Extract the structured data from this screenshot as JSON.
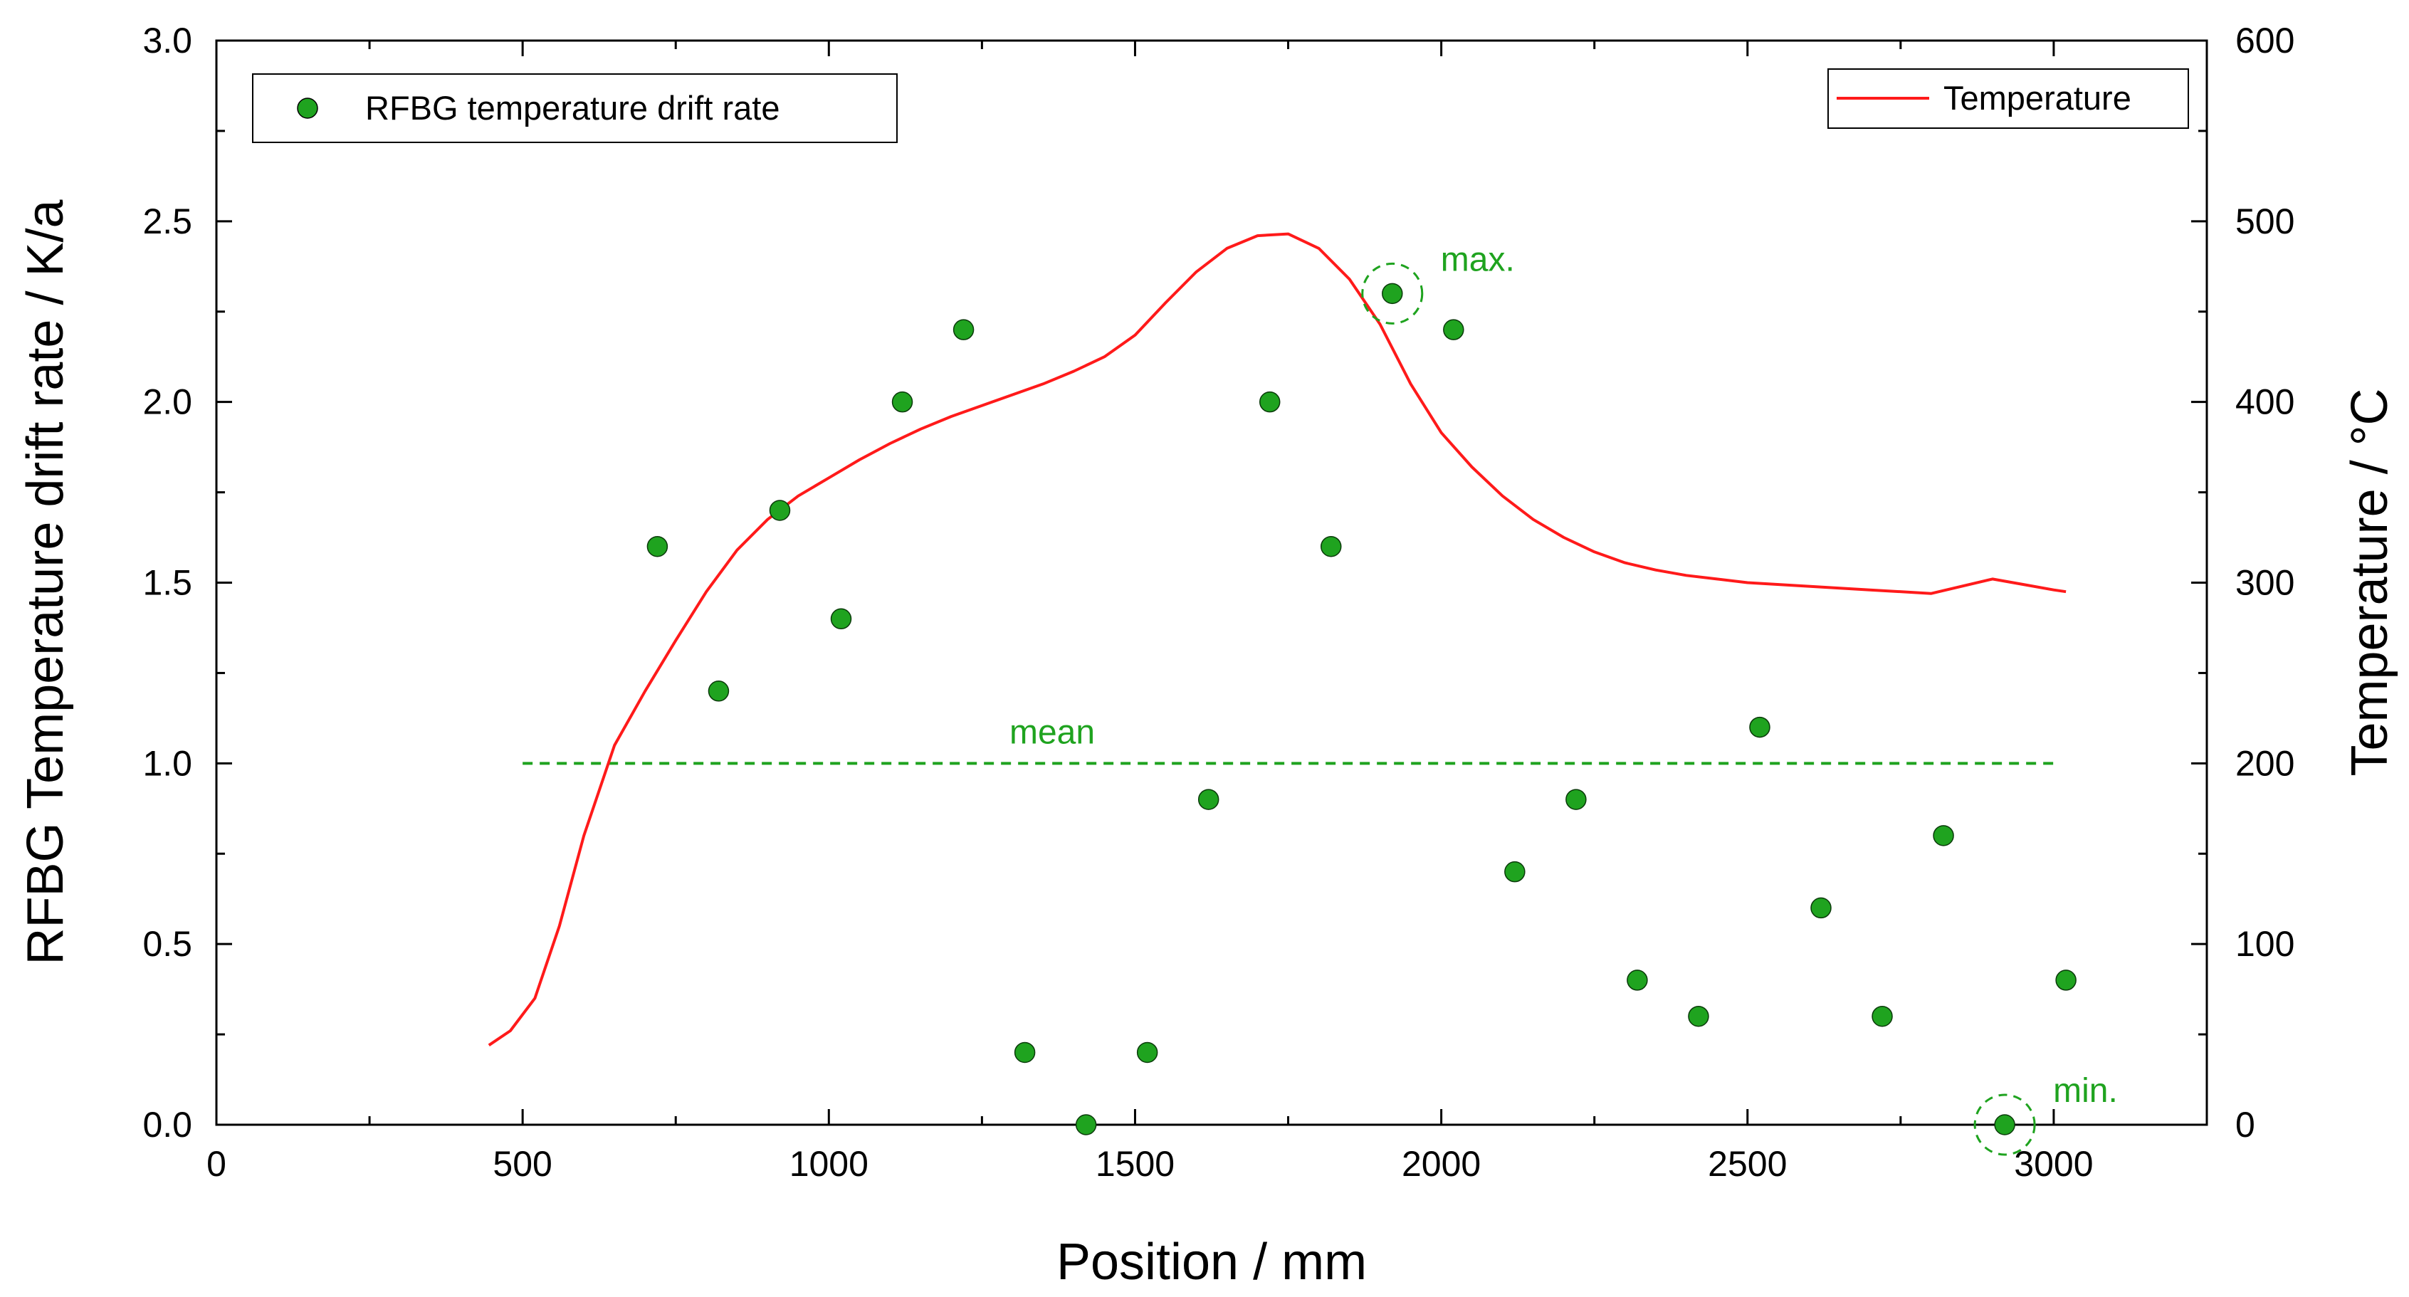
{
  "chart_data": {
    "type": "scatter+line",
    "xlabel": "Position / mm",
    "ylabel_left": "RFBG Temperature drift rate / K/a",
    "ylabel_right": "Temperature / °C",
    "xlim": [
      0,
      3250
    ],
    "ylim_left": [
      0,
      3.0
    ],
    "ylim_right": [
      0,
      600
    ],
    "x_ticks": [
      0,
      500,
      1000,
      1500,
      2000,
      2500,
      3000
    ],
    "x_tick_labels": [
      "0",
      "500",
      "1000",
      "1500",
      "2000",
      "2500",
      "3000"
    ],
    "y_left_ticks": [
      0,
      0.5,
      1.0,
      1.5,
      2.0,
      2.5,
      3.0
    ],
    "y_left_tick_labels": [
      "0.0",
      "0.5",
      "1.0",
      "1.5",
      "2.0",
      "2.5",
      "3.0"
    ],
    "y_right_ticks": [
      0,
      100,
      200,
      300,
      400,
      500,
      600
    ],
    "y_right_tick_labels": [
      "0",
      "100",
      "200",
      "300",
      "400",
      "500",
      "600"
    ],
    "legend_left": {
      "label": "RFBG temperature drift rate",
      "placement": "top-left"
    },
    "legend_right": {
      "label": "Temperature",
      "placement": "top-right"
    },
    "series": [
      {
        "name": "RFBG temperature drift rate",
        "type": "scatter",
        "axis": "left",
        "color": "#1fa31f",
        "x": [
          720,
          820,
          920,
          1020,
          1120,
          1220,
          1320,
          1420,
          1520,
          1620,
          1720,
          1820,
          1920,
          2020,
          2120,
          2220,
          2320,
          2420,
          2520,
          2620,
          2720,
          2820,
          2920,
          3020
        ],
        "y": [
          1.6,
          1.2,
          1.7,
          1.4,
          2.0,
          2.2,
          0.2,
          0.0,
          0.2,
          0.9,
          2.0,
          1.6,
          2.3,
          2.2,
          0.7,
          0.9,
          0.4,
          0.3,
          1.1,
          0.6,
          0.3,
          0.8,
          0.0,
          0.4
        ]
      },
      {
        "name": "Temperature",
        "type": "line",
        "axis": "right",
        "color": "#ff1a1a",
        "x": [
          445,
          480,
          520,
          560,
          600,
          650,
          700,
          750,
          800,
          850,
          900,
          950,
          1000,
          1050,
          1100,
          1150,
          1200,
          1250,
          1300,
          1350,
          1400,
          1450,
          1500,
          1550,
          1600,
          1650,
          1700,
          1750,
          1800,
          1850,
          1900,
          1950,
          2000,
          2050,
          2100,
          2150,
          2200,
          2250,
          2300,
          2350,
          2400,
          2450,
          2500,
          2600,
          2700,
          2800,
          2900,
          2950,
          3000,
          3020
        ],
        "y": [
          44,
          52,
          70,
          110,
          160,
          210,
          240,
          268,
          295,
          318,
          335,
          348,
          358,
          368,
          377,
          385,
          392,
          398,
          404,
          410,
          417,
          425,
          437,
          455,
          472,
          485,
          492,
          493,
          485,
          468,
          443,
          410,
          383,
          364,
          348,
          335,
          325,
          317,
          311,
          307,
          304,
          302,
          300,
          298,
          296,
          294,
          302,
          299,
          296,
          295
        ]
      }
    ],
    "reference_lines": [
      {
        "label": "mean",
        "axis": "left",
        "y": 1.0,
        "x_range": [
          500,
          3000
        ],
        "style": "dashed",
        "color": "#1fa31f"
      }
    ],
    "annotations": [
      {
        "label": "max.",
        "x": 1920,
        "y": 2.3,
        "color": "#1fa31f"
      },
      {
        "label": "min.",
        "x": 2920,
        "y": 0.0,
        "color": "#1fa31f"
      }
    ]
  }
}
